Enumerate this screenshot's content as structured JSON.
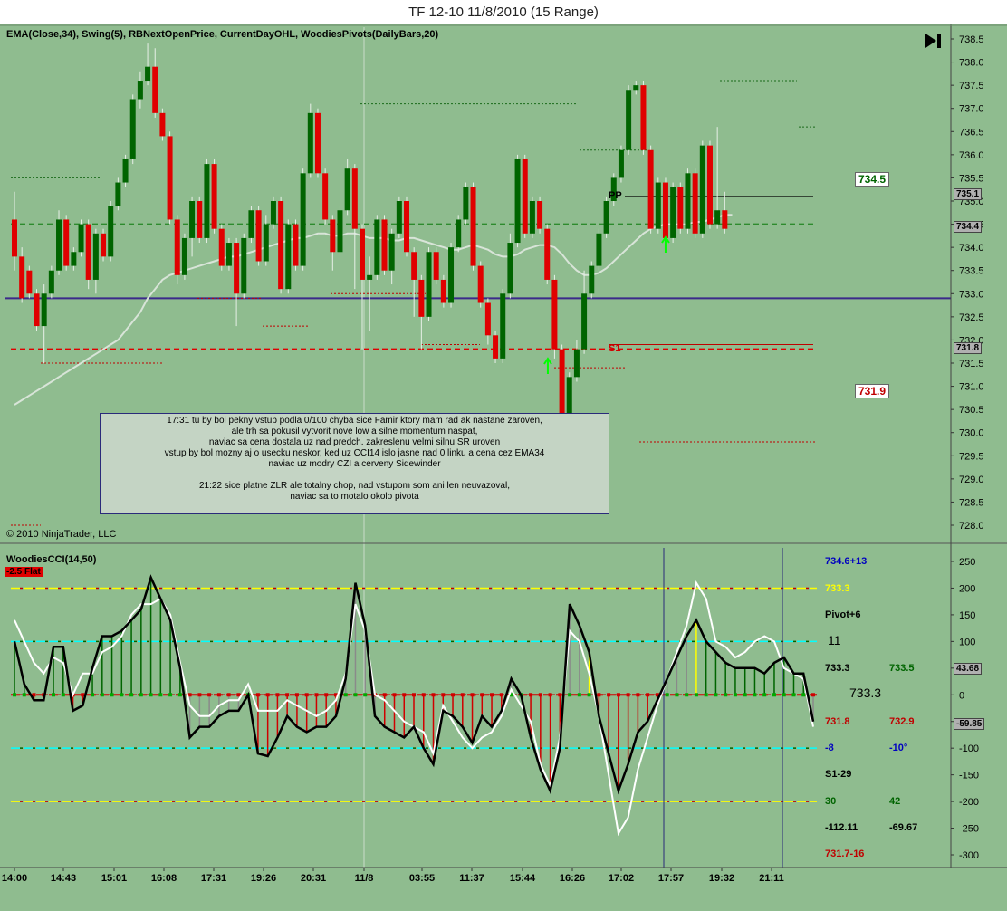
{
  "window": {
    "title": "TF 12-10  11/8/2010 (15 Range)"
  },
  "colors": {
    "background": "#8fbc8f",
    "up_bar": "#006400",
    "down_bar": "#e00000",
    "ema": "#d8e4d8",
    "support_line": "#e00000",
    "pivot_line": "#3b2a8a",
    "ema_dashed": "#2e8b2e",
    "cci_main": "#000000",
    "cci_turbo": "#ffffff"
  },
  "price_panel": {
    "indicators_label": "EMA(Close,34), Swing(5), RBNextOpenPrice, CurrentDayOHL, WoodiesPivots(DailyBars,20)",
    "copyright": "© 2010 NinjaTrader, LLC",
    "pivot_label_pp": "PP",
    "pivot_label_s1": "S1",
    "level_above": "734.5",
    "level_below": "731.9",
    "current_price": "735.1",
    "ema_price": "734.4",
    "s1_price": "731.8",
    "annotation_lines": [
      "17:31 tu by bol pekny vstup podla 0/100 chyba sice Famir ktory mam rad ak nastane zaroven,",
      "ale trh sa pokusil vytvorit nove low a silne momentum naspat,",
      "naviac sa cena dostala uz nad predch. zakreslenu velmi silnu SR uroven",
      "vstup by bol mozny aj o usecku neskor, ked uz CCI14 islo jasne nad 0 linku a cena cez EMA34",
      "naviac uz modry CZI a cerveny Sidewinder",
      "",
      "21:22 sice platne ZLR ale totalny chop, nad vstupom som ani len neuvazoval,",
      "naviac sa to motalo okolo pivota"
    ]
  },
  "cci_panel": {
    "label": "WoodiesCCI(14,50)",
    "badge": "-2.5 Flat",
    "info": {
      "line1": "734.6+13",
      "line2": "733.3",
      "line3": "Pivot+6",
      "line4": "11",
      "line5a": "733.3",
      "line5b": "733.5",
      "line6": "733.3",
      "line7a": "731.8",
      "line7b": "732.9",
      "line8a": "-8",
      "line8b": "-10°",
      "line9": "S1-29",
      "line10a": "30",
      "line10b": "42",
      "line11a": "-112.11",
      "line11b": "-69.67",
      "line12": "731.7-16"
    },
    "current_value": "43.68",
    "turbo_value": "-59.85"
  },
  "chart_data": [
    {
      "type": "candlestick",
      "title": "TF 12-10  11/8/2010 (15 Range)",
      "ylim": [
        727.7,
        738.7
      ],
      "yticks": [
        "738.5",
        "738.0",
        "737.5",
        "737.0",
        "736.5",
        "736.0",
        "735.5",
        "735.0",
        "734.5",
        "734.0",
        "733.5",
        "733.0",
        "732.5",
        "732.0",
        "731.5",
        "731.0",
        "730.5",
        "730.0",
        "729.5",
        "729.0",
        "728.5",
        "728.0"
      ],
      "bars": [
        {
          "o": 734.6,
          "c": 733.8,
          "h": 735.2,
          "l": 733.5
        },
        {
          "o": 733.8,
          "c": 732.9,
          "h": 734.0,
          "l": 732.8
        },
        {
          "o": 733.5,
          "c": 733.0,
          "h": 733.6,
          "l": 732.9
        },
        {
          "o": 733.0,
          "c": 732.3,
          "h": 733.1,
          "l": 732.2
        },
        {
          "o": 732.3,
          "c": 733.0,
          "h": 733.2,
          "l": 731.5
        },
        {
          "o": 733.0,
          "c": 733.5,
          "h": 733.6,
          "l": 732.9
        },
        {
          "o": 733.5,
          "c": 734.6,
          "h": 734.8,
          "l": 733.4
        },
        {
          "o": 734.6,
          "c": 733.6,
          "h": 734.7,
          "l": 733.5
        },
        {
          "o": 733.6,
          "c": 733.9,
          "h": 734.0,
          "l": 733.5
        },
        {
          "o": 733.9,
          "c": 734.5,
          "h": 734.6,
          "l": 733.8
        },
        {
          "o": 734.5,
          "c": 733.3,
          "h": 734.6,
          "l": 733.1
        },
        {
          "o": 733.3,
          "c": 734.3,
          "h": 734.4,
          "l": 733.0
        },
        {
          "o": 734.3,
          "c": 733.8,
          "h": 734.4,
          "l": 733.7
        },
        {
          "o": 733.8,
          "c": 734.9,
          "h": 735.0,
          "l": 733.7
        },
        {
          "o": 734.9,
          "c": 735.4,
          "h": 735.5,
          "l": 734.8
        },
        {
          "o": 735.4,
          "c": 735.9,
          "h": 736.0,
          "l": 735.3
        },
        {
          "o": 735.9,
          "c": 737.2,
          "h": 737.3,
          "l": 735.8
        },
        {
          "o": 737.2,
          "c": 737.6,
          "h": 737.8,
          "l": 737.0
        },
        {
          "o": 737.6,
          "c": 737.9,
          "h": 738.4,
          "l": 737.5
        },
        {
          "o": 737.9,
          "c": 736.9,
          "h": 738.3,
          "l": 736.8
        },
        {
          "o": 736.9,
          "c": 736.4,
          "h": 737.0,
          "l": 736.3
        },
        {
          "o": 736.4,
          "c": 734.6,
          "h": 736.5,
          "l": 734.5
        },
        {
          "o": 734.6,
          "c": 733.4,
          "h": 734.7,
          "l": 733.2
        },
        {
          "o": 733.4,
          "c": 734.2,
          "h": 734.3,
          "l": 733.3
        },
        {
          "o": 734.2,
          "c": 735.0,
          "h": 735.1,
          "l": 733.8
        },
        {
          "o": 735.0,
          "c": 734.2,
          "h": 735.1,
          "l": 734.1
        },
        {
          "o": 734.2,
          "c": 735.8,
          "h": 735.9,
          "l": 734.1
        },
        {
          "o": 735.8,
          "c": 734.4,
          "h": 735.9,
          "l": 734.3
        },
        {
          "o": 734.4,
          "c": 733.6,
          "h": 734.5,
          "l": 733.5
        },
        {
          "o": 733.6,
          "c": 734.1,
          "h": 734.2,
          "l": 733.5
        },
        {
          "o": 734.1,
          "c": 733.0,
          "h": 734.2,
          "l": 732.3
        },
        {
          "o": 733.0,
          "c": 734.2,
          "h": 734.3,
          "l": 732.9
        },
        {
          "o": 734.2,
          "c": 734.8,
          "h": 734.9,
          "l": 734.1
        },
        {
          "o": 734.8,
          "c": 733.7,
          "h": 734.9,
          "l": 733.6
        },
        {
          "o": 733.7,
          "c": 734.5,
          "h": 734.7,
          "l": 733.6
        },
        {
          "o": 734.5,
          "c": 735.0,
          "h": 735.1,
          "l": 734.4
        },
        {
          "o": 735.0,
          "c": 733.1,
          "h": 735.1,
          "l": 733.0
        },
        {
          "o": 733.1,
          "c": 734.5,
          "h": 734.6,
          "l": 733.0
        },
        {
          "o": 734.5,
          "c": 733.6,
          "h": 734.6,
          "l": 733.5
        },
        {
          "o": 733.6,
          "c": 735.6,
          "h": 735.7,
          "l": 733.5
        },
        {
          "o": 735.6,
          "c": 736.9,
          "h": 737.1,
          "l": 735.5
        },
        {
          "o": 736.9,
          "c": 735.6,
          "h": 737.0,
          "l": 735.5
        },
        {
          "o": 735.6,
          "c": 734.6,
          "h": 735.7,
          "l": 734.5
        },
        {
          "o": 734.6,
          "c": 733.9,
          "h": 734.7,
          "l": 733.5
        },
        {
          "o": 733.9,
          "c": 734.8,
          "h": 734.9,
          "l": 733.8
        },
        {
          "o": 734.8,
          "c": 735.7,
          "h": 735.9,
          "l": 734.7
        },
        {
          "o": 735.7,
          "c": 734.4,
          "h": 735.8,
          "l": 733.1
        },
        {
          "o": 734.4,
          "c": 733.3,
          "h": 734.5,
          "l": 731.8
        },
        {
          "o": 733.3,
          "c": 733.4,
          "h": 733.8,
          "l": 732.2
        },
        {
          "o": 733.4,
          "c": 734.6,
          "h": 734.7,
          "l": 733.3
        },
        {
          "o": 734.6,
          "c": 733.5,
          "h": 734.7,
          "l": 733.4
        },
        {
          "o": 733.5,
          "c": 734.3,
          "h": 734.4,
          "l": 733.2
        },
        {
          "o": 734.3,
          "c": 735.0,
          "h": 735.1,
          "l": 734.2
        },
        {
          "o": 735.0,
          "c": 733.9,
          "h": 735.1,
          "l": 733.8
        },
        {
          "o": 733.9,
          "c": 733.3,
          "h": 734.0,
          "l": 732.5
        },
        {
          "o": 733.3,
          "c": 732.5,
          "h": 733.4,
          "l": 731.8
        },
        {
          "o": 732.5,
          "c": 733.9,
          "h": 734.0,
          "l": 732.4
        },
        {
          "o": 733.9,
          "c": 733.3,
          "h": 734.0,
          "l": 733.2
        },
        {
          "o": 733.3,
          "c": 732.8,
          "h": 733.4,
          "l": 732.7
        },
        {
          "o": 732.8,
          "c": 734.0,
          "h": 734.1,
          "l": 732.7
        },
        {
          "o": 734.0,
          "c": 734.6,
          "h": 734.7,
          "l": 733.9
        },
        {
          "o": 734.6,
          "c": 735.3,
          "h": 735.4,
          "l": 734.5
        },
        {
          "o": 735.3,
          "c": 733.6,
          "h": 735.4,
          "l": 733.5
        },
        {
          "o": 733.6,
          "c": 732.8,
          "h": 733.7,
          "l": 732.7
        },
        {
          "o": 732.8,
          "c": 732.1,
          "h": 732.9,
          "l": 731.9
        },
        {
          "o": 732.1,
          "c": 731.6,
          "h": 732.2,
          "l": 731.5
        },
        {
          "o": 731.6,
          "c": 733.0,
          "h": 733.1,
          "l": 731.5
        },
        {
          "o": 733.0,
          "c": 734.1,
          "h": 734.3,
          "l": 732.9
        },
        {
          "o": 734.1,
          "c": 735.9,
          "h": 736.0,
          "l": 734.0
        },
        {
          "o": 735.9,
          "c": 734.3,
          "h": 736.0,
          "l": 734.2
        },
        {
          "o": 734.3,
          "c": 735.0,
          "h": 735.1,
          "l": 734.2
        },
        {
          "o": 735.0,
          "c": 734.4,
          "h": 735.1,
          "l": 734.3
        },
        {
          "o": 734.4,
          "c": 733.3,
          "h": 734.5,
          "l": 733.2
        },
        {
          "o": 733.3,
          "c": 731.8,
          "h": 733.4,
          "l": 731.6
        },
        {
          "o": 731.8,
          "c": 729.9,
          "h": 731.9,
          "l": 729.8
        },
        {
          "o": 729.9,
          "c": 731.2,
          "h": 731.3,
          "l": 729.7
        },
        {
          "o": 731.2,
          "c": 731.8,
          "h": 732.0,
          "l": 731.1
        },
        {
          "o": 731.8,
          "c": 733.0,
          "h": 733.5,
          "l": 731.7
        },
        {
          "o": 733.0,
          "c": 733.6,
          "h": 733.7,
          "l": 732.9
        },
        {
          "o": 733.6,
          "c": 734.3,
          "h": 734.4,
          "l": 733.5
        },
        {
          "o": 734.3,
          "c": 735.0,
          "h": 735.1,
          "l": 734.2
        },
        {
          "o": 735.0,
          "c": 735.5,
          "h": 735.6,
          "l": 734.9
        },
        {
          "o": 735.5,
          "c": 736.1,
          "h": 736.2,
          "l": 735.4
        },
        {
          "o": 736.1,
          "c": 737.4,
          "h": 737.5,
          "l": 736.0
        },
        {
          "o": 737.4,
          "c": 737.5,
          "h": 737.6,
          "l": 737.3
        },
        {
          "o": 737.5,
          "c": 736.1,
          "h": 737.6,
          "l": 736.0
        },
        {
          "o": 736.1,
          "c": 734.4,
          "h": 736.2,
          "l": 734.3
        },
        {
          "o": 734.4,
          "c": 735.4,
          "h": 735.5,
          "l": 734.3
        },
        {
          "o": 735.4,
          "c": 734.2,
          "h": 735.5,
          "l": 734.1
        },
        {
          "o": 734.2,
          "c": 735.3,
          "h": 735.4,
          "l": 734.1
        },
        {
          "o": 735.3,
          "c": 734.4,
          "h": 735.4,
          "l": 734.3
        },
        {
          "o": 734.4,
          "c": 735.6,
          "h": 735.7,
          "l": 734.3
        },
        {
          "o": 735.6,
          "c": 734.3,
          "h": 735.7,
          "l": 734.2
        },
        {
          "o": 734.3,
          "c": 736.2,
          "h": 736.3,
          "l": 734.2
        },
        {
          "o": 736.2,
          "c": 734.5,
          "h": 736.3,
          "l": 734.4
        },
        {
          "o": 734.5,
          "c": 734.8,
          "h": 736.6,
          "l": 734.4
        },
        {
          "o": 734.8,
          "c": 734.4,
          "h": 735.2,
          "l": 734.3
        }
      ],
      "ema34": [
        730.6,
        730.7,
        730.8,
        730.9,
        731.0,
        731.1,
        731.2,
        731.3,
        731.4,
        731.5,
        731.6,
        731.7,
        731.8,
        731.9,
        732.0,
        732.2,
        732.4,
        732.6,
        732.9,
        733.1,
        733.3,
        733.4,
        733.45,
        733.5,
        733.55,
        733.6,
        733.65,
        733.7,
        733.75,
        733.8,
        733.8,
        733.85,
        733.9,
        733.95,
        734.0,
        734.05,
        734.1,
        734.15,
        734.2,
        734.2,
        734.25,
        734.3,
        734.3,
        734.25,
        734.25,
        734.3,
        734.3,
        734.25,
        734.2,
        734.2,
        734.2,
        734.15,
        734.15,
        734.2,
        734.2,
        734.15,
        734.1,
        734.05,
        734.0,
        733.95,
        733.95,
        734.0,
        734.05,
        734.0,
        733.95,
        733.85,
        733.8,
        733.8,
        733.85,
        733.95,
        734.0,
        734.05,
        734.05,
        734.0,
        733.85,
        733.65,
        733.5,
        733.4,
        733.4,
        733.45,
        733.55,
        733.7,
        733.85,
        734.0,
        734.15,
        734.3,
        734.4,
        734.45,
        734.5,
        734.5,
        734.5,
        734.5,
        734.55,
        734.55,
        734.6,
        734.65,
        734.7,
        734.7
      ],
      "levels": {
        "pp": 735.1,
        "ema_dashed": 734.5,
        "purple_hline": 732.9,
        "s1": 731.8,
        "upper_tag": 734.5,
        "lower_tag": 731.9
      },
      "x_ticks": [
        "14:00",
        "14:43",
        "15:01",
        "16:08",
        "17:31",
        "19:26",
        "20:31",
        "11/8",
        "03:55",
        "11:37",
        "15:44",
        "16:26",
        "17:02",
        "17:57",
        "19:32",
        "21:11"
      ]
    },
    {
      "type": "line",
      "title": "WoodiesCCI(14,50)",
      "ylim": [
        -320,
        265
      ],
      "yticks": [
        250,
        200,
        150,
        100,
        50,
        0,
        -50,
        -100,
        -150,
        -200,
        -250,
        -300
      ],
      "levels": [
        200,
        100,
        0,
        -100,
        -200
      ],
      "cci14": [
        100,
        20,
        -10,
        -10,
        90,
        90,
        -30,
        -20,
        50,
        110,
        110,
        120,
        140,
        160,
        220,
        180,
        140,
        50,
        -80,
        -60,
        -60,
        -40,
        -30,
        -30,
        0,
        -110,
        -115,
        -80,
        -40,
        -60,
        -70,
        -60,
        -60,
        -40,
        30,
        210,
        130,
        -40,
        -60,
        -70,
        -80,
        -60,
        -100,
        -130,
        -30,
        -40,
        -60,
        -90,
        -40,
        -60,
        -30,
        30,
        0,
        -80,
        -140,
        -180,
        -100,
        170,
        130,
        80,
        -40,
        -110,
        -180,
        -130,
        -70,
        -50,
        -10,
        30,
        70,
        110,
        140,
        100,
        80,
        60,
        50,
        50,
        50,
        40,
        60,
        70,
        40,
        40,
        -50
      ],
      "cci50": [
        140,
        100,
        60,
        40,
        70,
        60,
        0,
        40,
        40,
        80,
        90,
        110,
        150,
        170,
        170,
        180,
        150,
        60,
        -20,
        -40,
        -40,
        -20,
        -10,
        -10,
        20,
        -30,
        -30,
        -30,
        -10,
        -20,
        -30,
        -40,
        -30,
        -10,
        40,
        170,
        120,
        0,
        -10,
        -30,
        -50,
        -60,
        -70,
        -110,
        -20,
        -50,
        -80,
        -100,
        -80,
        -70,
        -40,
        10,
        -20,
        -50,
        -130,
        -170,
        -80,
        120,
        100,
        40,
        -40,
        -150,
        -260,
        -230,
        -140,
        -80,
        -20,
        30,
        80,
        130,
        210,
        180,
        100,
        90,
        70,
        80,
        100,
        110,
        100,
        50,
        40,
        30,
        -60
      ],
      "hist_colors": [
        "g",
        "g",
        "r",
        "r",
        "g",
        "g",
        "r",
        "r",
        "g",
        "g",
        "g",
        "g",
        "g",
        "g",
        "g",
        "g",
        "g",
        "g",
        "gr",
        "gr",
        "gr",
        "gr",
        "gr",
        "gr",
        "gr",
        "r",
        "r",
        "r",
        "r",
        "r",
        "r",
        "r",
        "r",
        "r",
        "gr",
        "gr",
        "gr",
        "gr",
        "r",
        "r",
        "r",
        "r",
        "r",
        "r",
        "r",
        "r",
        "r",
        "r",
        "r",
        "r",
        "r",
        "gr",
        "gr",
        "r",
        "r",
        "r",
        "r",
        "gr",
        "gr",
        "y",
        "r",
        "r",
        "r",
        "r",
        "r",
        "r",
        "gr",
        "gr",
        "gr",
        "gr",
        "y",
        "g",
        "g",
        "g",
        "g",
        "g",
        "g",
        "g",
        "g",
        "g",
        "g",
        "g",
        "gr"
      ],
      "x_ticks": [
        "14:00",
        "14:43",
        "15:01",
        "16:08",
        "17:31",
        "19:26",
        "20:31",
        "11/8",
        "03:55",
        "11:37",
        "15:44",
        "16:26",
        "17:02",
        "17:57",
        "19:32",
        "21:11"
      ]
    }
  ]
}
